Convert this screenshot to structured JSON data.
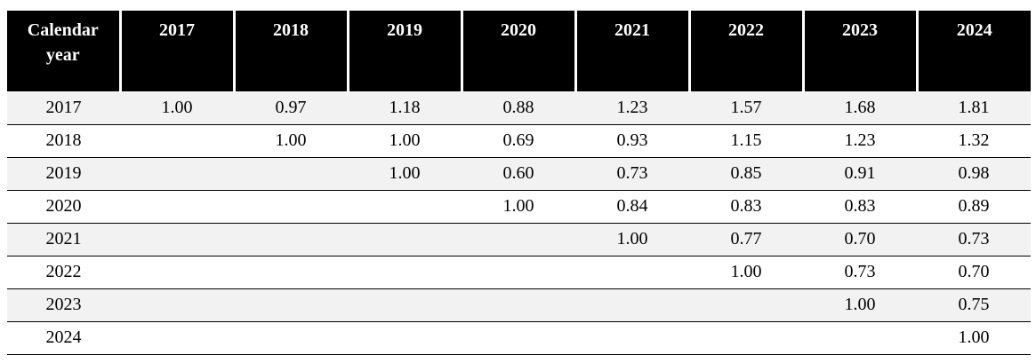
{
  "table": {
    "headers": [
      "Calendar\nyear",
      "2017",
      "2018",
      "2019",
      "2020",
      "2021",
      "2022",
      "2023",
      "2024"
    ],
    "rows": [
      {
        "year": "2017",
        "cells": [
          "1.00",
          "0.97",
          "1.18",
          "0.88",
          "1.23",
          "1.57",
          "1.68",
          "1.81"
        ]
      },
      {
        "year": "2018",
        "cells": [
          "",
          "1.00",
          "1.00",
          "0.69",
          "0.93",
          "1.15",
          "1.23",
          "1.32"
        ]
      },
      {
        "year": "2019",
        "cells": [
          "",
          "",
          "1.00",
          "0.60",
          "0.73",
          "0.85",
          "0.91",
          "0.98"
        ]
      },
      {
        "year": "2020",
        "cells": [
          "",
          "",
          "",
          "1.00",
          "0.84",
          "0.83",
          "0.83",
          "0.89"
        ]
      },
      {
        "year": "2021",
        "cells": [
          "",
          "",
          "",
          "",
          "1.00",
          "0.77",
          "0.70",
          "0.73"
        ]
      },
      {
        "year": "2022",
        "cells": [
          "",
          "",
          "",
          "",
          "",
          "1.00",
          "0.73",
          "0.70"
        ]
      },
      {
        "year": "2023",
        "cells": [
          "",
          "",
          "",
          "",
          "",
          "",
          "1.00",
          "0.75"
        ]
      },
      {
        "year": "2024",
        "cells": [
          "",
          "",
          "",
          "",
          "",
          "",
          "",
          "1.00"
        ]
      }
    ]
  }
}
